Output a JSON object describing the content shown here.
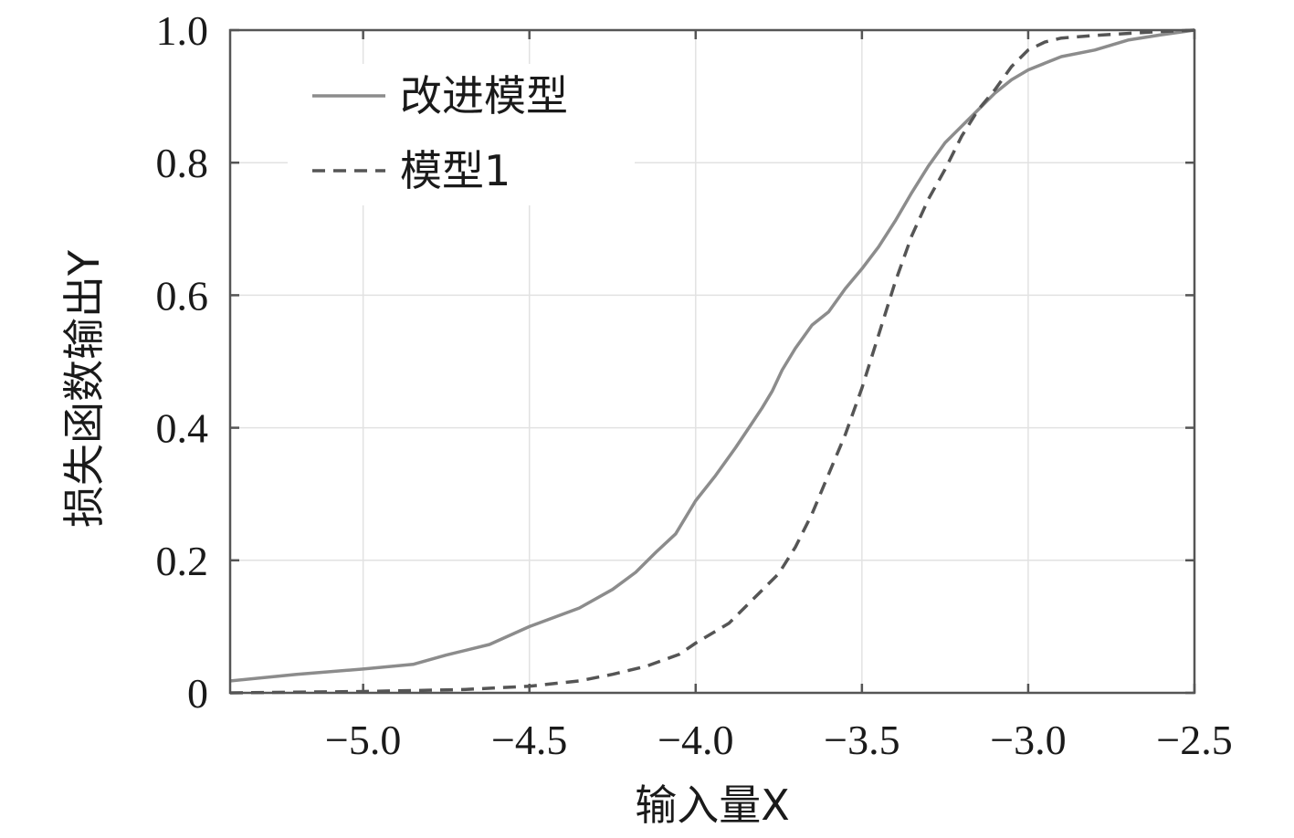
{
  "chart_data": {
    "type": "line",
    "xlabel": "输入量X",
    "ylabel": "损失函数输出Y",
    "xlim": [
      -5.4,
      -2.5
    ],
    "ylim": [
      0,
      1.0
    ],
    "xticks": [
      -5.0,
      -4.5,
      -4.0,
      -3.5,
      -3.0,
      -2.5
    ],
    "xtick_labels": [
      "−5.0",
      "−4.5",
      "−4.0",
      "−3.5",
      "−3.0",
      "−2.5"
    ],
    "yticks": [
      0,
      0.2,
      0.4,
      0.6,
      0.8,
      1.0
    ],
    "ytick_labels": [
      "0",
      "0.2",
      "0.4",
      "0.6",
      "0.8",
      "1.0"
    ],
    "grid": true,
    "legend_position": "top-left",
    "series": [
      {
        "name": "改进模型",
        "style": "solid",
        "color": "#8c8c8c",
        "x": [
          -5.4,
          -5.2,
          -5.0,
          -4.85,
          -4.75,
          -4.62,
          -4.5,
          -4.35,
          -4.25,
          -4.18,
          -4.12,
          -4.06,
          -4.0,
          -3.94,
          -3.88,
          -3.84,
          -3.8,
          -3.77,
          -3.74,
          -3.7,
          -3.65,
          -3.6,
          -3.55,
          -3.5,
          -3.45,
          -3.4,
          -3.35,
          -3.3,
          -3.25,
          -3.2,
          -3.15,
          -3.1,
          -3.05,
          -3.0,
          -2.95,
          -2.9,
          -2.8,
          -2.7,
          -2.6,
          -2.5
        ],
        "y": [
          0.018,
          0.028,
          0.036,
          0.043,
          0.057,
          0.073,
          0.1,
          0.128,
          0.156,
          0.182,
          0.212,
          0.24,
          0.29,
          0.328,
          0.37,
          0.4,
          0.43,
          0.455,
          0.487,
          0.52,
          0.555,
          0.575,
          0.61,
          0.64,
          0.673,
          0.712,
          0.755,
          0.795,
          0.83,
          0.855,
          0.88,
          0.905,
          0.925,
          0.94,
          0.95,
          0.96,
          0.97,
          0.985,
          0.993,
          1.0
        ]
      },
      {
        "name": "模型1",
        "style": "dashed",
        "color": "#555555",
        "x": [
          -5.4,
          -5.0,
          -4.7,
          -4.5,
          -4.35,
          -4.25,
          -4.15,
          -4.05,
          -4.0,
          -3.9,
          -3.85,
          -3.8,
          -3.75,
          -3.7,
          -3.65,
          -3.6,
          -3.55,
          -3.5,
          -3.45,
          -3.4,
          -3.35,
          -3.3,
          -3.25,
          -3.2,
          -3.15,
          -3.1,
          -3.05,
          -3.0,
          -2.95,
          -2.9,
          -2.8,
          -2.7,
          -2.6,
          -2.5
        ],
        "y": [
          0.0,
          0.002,
          0.005,
          0.01,
          0.018,
          0.028,
          0.04,
          0.058,
          0.075,
          0.105,
          0.13,
          0.155,
          0.18,
          0.22,
          0.27,
          0.33,
          0.39,
          0.46,
          0.54,
          0.62,
          0.69,
          0.745,
          0.79,
          0.84,
          0.88,
          0.91,
          0.945,
          0.97,
          0.982,
          0.988,
          0.992,
          0.995,
          0.998,
          1.0
        ]
      }
    ]
  }
}
